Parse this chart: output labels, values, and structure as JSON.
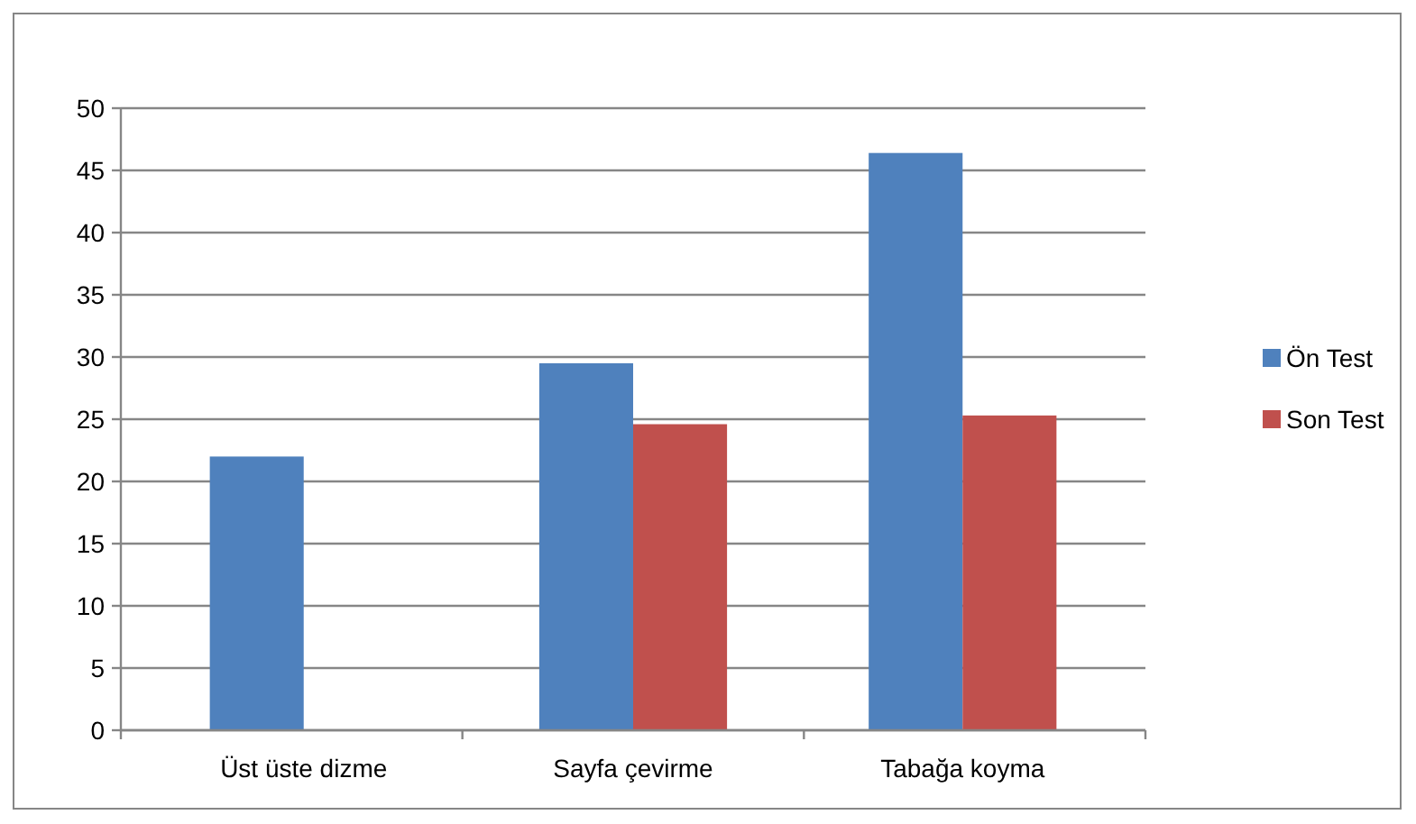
{
  "chart_data": {
    "type": "bar",
    "categories": [
      "Üst üste dizme",
      "Sayfa çevirme",
      "Tabağa koyma"
    ],
    "series": [
      {
        "name": "Ön Test",
        "color": "#4f81bd",
        "values": [
          22,
          29.5,
          46.4
        ]
      },
      {
        "name": "Son Test",
        "color": "#c0504d",
        "values": [
          0,
          24.6,
          25.3
        ]
      }
    ],
    "ylim": [
      0,
      50
    ],
    "yticks": [
      0,
      5,
      10,
      15,
      20,
      25,
      30,
      35,
      40,
      45,
      50
    ],
    "grid": "y",
    "legend": "right"
  }
}
